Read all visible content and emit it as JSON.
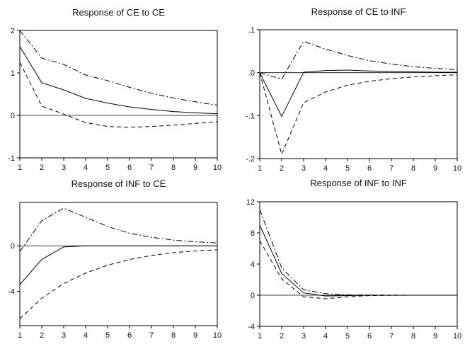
{
  "chart_data": [
    {
      "type": "line",
      "title": "Response of CE to CE",
      "x": [
        1,
        2,
        3,
        4,
        5,
        6,
        7,
        8,
        9,
        10
      ],
      "xlim": [
        1,
        10
      ],
      "ylim": [
        -1,
        2
      ],
      "yticks": [
        -1,
        0,
        1,
        2
      ],
      "ytick_labels": [
        "-1",
        "0",
        "1",
        "2"
      ],
      "zero_line": true,
      "series": [
        {
          "role": "response",
          "style": "solid",
          "values": [
            1.62,
            0.77,
            0.6,
            0.4,
            0.29,
            0.2,
            0.14,
            0.09,
            0.06,
            0.04
          ]
        },
        {
          "role": "upper",
          "style": "dashdot",
          "values": [
            2.0,
            1.35,
            1.2,
            0.95,
            0.82,
            0.66,
            0.52,
            0.41,
            0.32,
            0.24
          ]
        },
        {
          "role": "lower",
          "style": "dashed",
          "values": [
            1.25,
            0.22,
            0.03,
            -0.17,
            -0.26,
            -0.28,
            -0.26,
            -0.23,
            -0.19,
            -0.15
          ]
        }
      ]
    },
    {
      "type": "line",
      "title": "Response of CE to INF",
      "x": [
        1,
        2,
        3,
        4,
        5,
        6,
        7,
        8,
        9,
        10
      ],
      "xlim": [
        1,
        10
      ],
      "ylim": [
        -0.2,
        0.1
      ],
      "yticks": [
        -0.2,
        -0.1,
        0.0,
        0.1
      ],
      "ytick_labels": [
        "-.2",
        "-.1",
        ".0",
        ".1"
      ],
      "zero_line": true,
      "series": [
        {
          "role": "response",
          "style": "solid",
          "values": [
            0.0,
            -0.102,
            0.001,
            0.005,
            0.006,
            0.004,
            0.003,
            0.002,
            0.001,
            0.001
          ]
        },
        {
          "role": "upper",
          "style": "dashdot",
          "values": [
            0.0,
            -0.015,
            0.073,
            0.055,
            0.04,
            0.028,
            0.02,
            0.014,
            0.01,
            0.007
          ]
        },
        {
          "role": "lower",
          "style": "dashed",
          "values": [
            0.0,
            -0.19,
            -0.07,
            -0.045,
            -0.029,
            -0.02,
            -0.014,
            -0.01,
            -0.007,
            -0.005
          ]
        }
      ]
    },
    {
      "type": "line",
      "title": "Response of INF to CE",
      "x": [
        1,
        2,
        3,
        4,
        5,
        6,
        7,
        8,
        9,
        10
      ],
      "xlim": [
        1,
        10
      ],
      "ylim": [
        -7,
        3.8
      ],
      "yticks": [
        -4,
        0
      ],
      "ytick_labels": [
        "-4",
        "0"
      ],
      "zero_line": true,
      "series": [
        {
          "role": "response",
          "style": "solid",
          "values": [
            -3.4,
            -1.2,
            -0.1,
            0.0,
            0.0,
            0.0,
            0.0,
            0.0,
            0.0,
            0.0
          ]
        },
        {
          "role": "upper",
          "style": "dashdot",
          "values": [
            -0.5,
            2.2,
            3.3,
            2.5,
            1.7,
            1.1,
            0.75,
            0.5,
            0.35,
            0.25
          ]
        },
        {
          "role": "lower",
          "style": "dashed",
          "values": [
            -6.4,
            -4.6,
            -3.3,
            -2.4,
            -1.7,
            -1.2,
            -0.85,
            -0.6,
            -0.45,
            -0.35
          ]
        }
      ]
    },
    {
      "type": "line",
      "title": "Response of INF to INF",
      "x": [
        1,
        2,
        3,
        4,
        5,
        6,
        7,
        8,
        9,
        10
      ],
      "xlim": [
        1,
        10
      ],
      "ylim": [
        -4,
        12
      ],
      "yticks": [
        -4,
        0,
        4,
        8,
        12
      ],
      "ytick_labels": [
        "-4",
        "0",
        "4",
        "8",
        "12"
      ],
      "zero_line": true,
      "series": [
        {
          "role": "response",
          "style": "solid",
          "values": [
            9.0,
            2.8,
            0.3,
            -0.1,
            -0.05,
            0.0,
            0.0,
            0.0,
            0.0,
            0.0
          ]
        },
        {
          "role": "upper",
          "style": "dashdot",
          "values": [
            11.0,
            3.5,
            0.7,
            0.2,
            0.05,
            0.02,
            0.01,
            0.0,
            0.0,
            0.0
          ]
        },
        {
          "role": "lower",
          "style": "dashed",
          "values": [
            7.0,
            2.1,
            -0.2,
            -0.45,
            -0.2,
            -0.05,
            -0.02,
            0.0,
            0.0,
            0.0
          ]
        }
      ]
    }
  ]
}
